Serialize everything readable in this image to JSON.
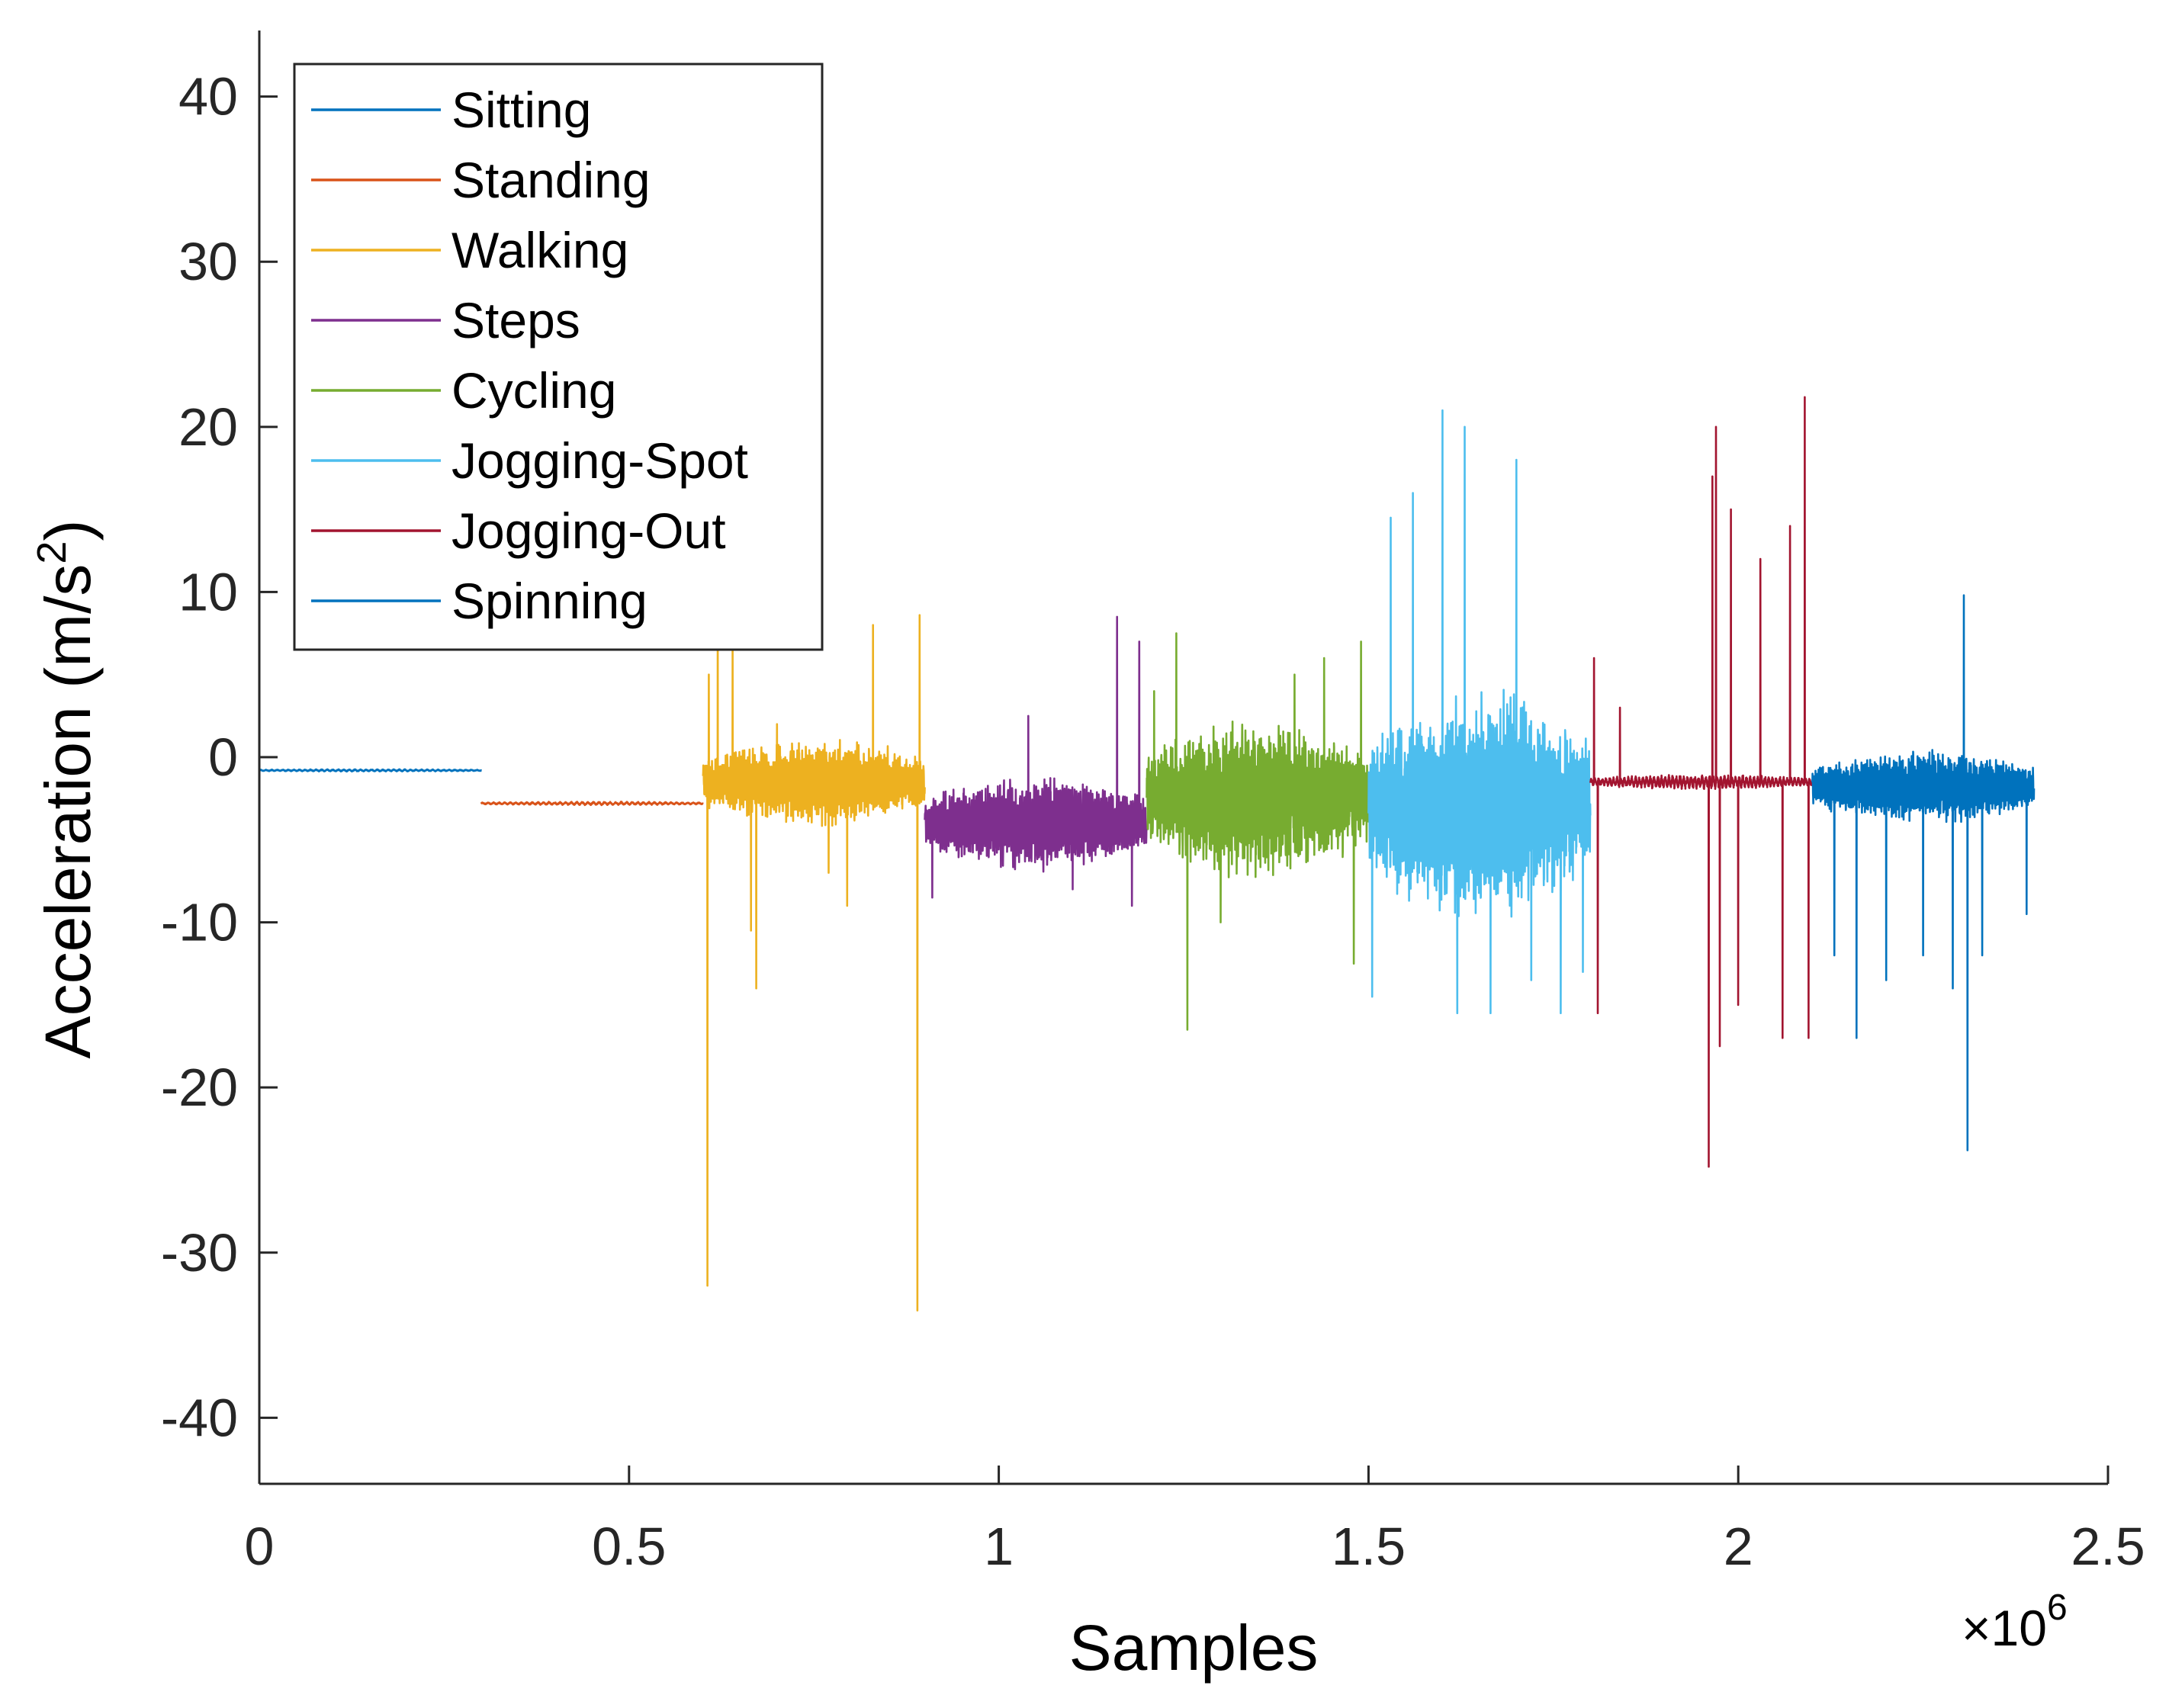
{
  "chart_data": {
    "type": "line",
    "title": "",
    "xlabel": "Samples",
    "ylabel_main": "Acceleration (m/s",
    "ylabel_sup": "2",
    "ylabel_close": ")",
    "x_exponent_base": "×10",
    "x_exponent_power": "6",
    "xlim": [
      0,
      2.5
    ],
    "ylim": [
      -44,
      44
    ],
    "x_ticks": [
      0,
      0.5,
      1,
      1.5,
      2,
      2.5
    ],
    "x_tick_labels": [
      "0",
      "0.5",
      "1",
      "1.5",
      "2",
      "2.5"
    ],
    "y_ticks": [
      -40,
      -30,
      -20,
      -10,
      0,
      10,
      20,
      30,
      40
    ],
    "y_tick_labels": [
      "-40",
      "-30",
      "-20",
      "-10",
      "0",
      "10",
      "20",
      "30",
      "40"
    ],
    "grid": false,
    "legend_location": "top-left",
    "series": [
      {
        "name": "Sitting",
        "color": "#0072BD",
        "x_range": [
          0,
          0.3
        ],
        "baseline": -0.8,
        "spread": 0.08,
        "cycles": 40,
        "seed": 1,
        "peaks": []
      },
      {
        "name": "Standing",
        "color": "#D95319",
        "x_range": [
          0.3,
          0.6
        ],
        "baseline": -2.8,
        "spread": 0.12,
        "cycles": 40,
        "seed": 2,
        "peaks": []
      },
      {
        "name": "Walking",
        "color": "#EDB120",
        "x_range": [
          0.6,
          0.9
        ],
        "baseline": -1.5,
        "spread": 3.0,
        "cycles": 130,
        "seed": 3,
        "peaks": [
          [
            0.606,
            -32
          ],
          [
            0.608,
            5
          ],
          [
            0.62,
            9
          ],
          [
            0.665,
            -10.5
          ],
          [
            0.672,
            -14
          ],
          [
            0.64,
            7
          ],
          [
            0.7,
            2
          ],
          [
            0.77,
            -7
          ],
          [
            0.795,
            -9
          ],
          [
            0.83,
            8
          ],
          [
            0.89,
            -33.5
          ],
          [
            0.893,
            8.6
          ]
        ]
      },
      {
        "name": "Steps",
        "color": "#7E2F8E",
        "x_range": [
          0.9,
          1.2
        ],
        "baseline": -4.0,
        "spread": 3.2,
        "cycles": 110,
        "seed": 4,
        "peaks": [
          [
            0.91,
            -8.5
          ],
          [
            0.95,
            -6
          ],
          [
            1.04,
            2.5
          ],
          [
            1.1,
            -8
          ],
          [
            1.16,
            8.5
          ],
          [
            1.18,
            -9
          ],
          [
            1.19,
            7
          ]
        ]
      },
      {
        "name": "Cycling",
        "color": "#77AC30",
        "x_range": [
          1.2,
          1.5
        ],
        "baseline": -2.5,
        "spread": 5.5,
        "cycles": 140,
        "seed": 5,
        "peaks": [
          [
            1.21,
            4
          ],
          [
            1.24,
            7.5
          ],
          [
            1.255,
            -16.5
          ],
          [
            1.3,
            -10
          ],
          [
            1.4,
            5
          ],
          [
            1.44,
            6
          ],
          [
            1.48,
            -12.5
          ],
          [
            1.49,
            7
          ]
        ]
      },
      {
        "name": "Jogging-Spot",
        "color": "#4DBEEE",
        "x_range": [
          1.5,
          1.8
        ],
        "baseline": -3.0,
        "spread": 8.0,
        "cycles": 130,
        "seed": 6,
        "peaks": [
          [
            1.505,
            -14.5
          ],
          [
            1.53,
            14.5
          ],
          [
            1.56,
            16
          ],
          [
            1.6,
            21
          ],
          [
            1.62,
            -15.5
          ],
          [
            1.63,
            20
          ],
          [
            1.665,
            -15.5
          ],
          [
            1.7,
            18
          ],
          [
            1.72,
            -13.5
          ],
          [
            1.76,
            -15.5
          ],
          [
            1.79,
            -13
          ]
        ]
      },
      {
        "name": "Jogging-Out",
        "color": "#A2142F",
        "x_range": [
          1.8,
          2.1
        ],
        "baseline": -1.5,
        "spread": 0.5,
        "cycles": 60,
        "seed": 7,
        "peaks": [
          [
            1.805,
            6
          ],
          [
            1.81,
            -15.5
          ],
          [
            1.84,
            3
          ],
          [
            1.96,
            -24.8
          ],
          [
            1.965,
            17
          ],
          [
            1.97,
            20
          ],
          [
            1.975,
            -17.5
          ],
          [
            1.99,
            15
          ],
          [
            2.0,
            -15
          ],
          [
            2.03,
            12
          ],
          [
            2.06,
            -17
          ],
          [
            2.07,
            14
          ],
          [
            2.09,
            21.8
          ],
          [
            2.095,
            -17
          ]
        ]
      },
      {
        "name": "Spinning",
        "color": "#0072BD",
        "x_range": [
          2.1,
          2.4
        ],
        "baseline": -1.8,
        "spread": 2.5,
        "cycles": 150,
        "seed": 8,
        "peaks": [
          [
            2.13,
            -12
          ],
          [
            2.16,
            -17
          ],
          [
            2.2,
            -13.5
          ],
          [
            2.25,
            -12
          ],
          [
            2.29,
            -14
          ],
          [
            2.305,
            9.8
          ],
          [
            2.31,
            -23.8
          ],
          [
            2.33,
            -12
          ],
          [
            2.39,
            -9.5
          ]
        ]
      }
    ]
  }
}
